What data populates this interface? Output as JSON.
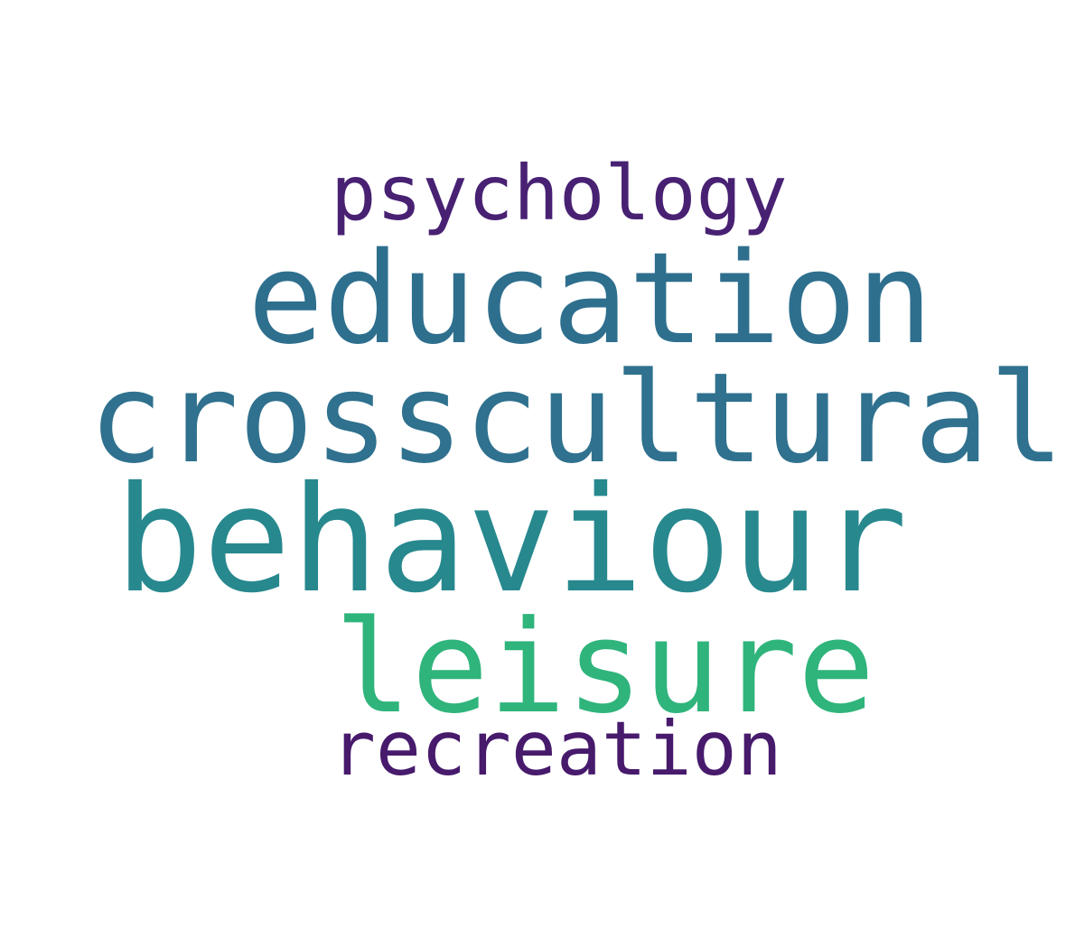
{
  "words": [
    {
      "text": "psychology",
      "color": "#482173"
    },
    {
      "text": "education",
      "color": "#2e6f8e"
    },
    {
      "text": "crosscultural",
      "color": "#2f718e"
    },
    {
      "text": "behaviour",
      "color": "#27888e"
    },
    {
      "text": "leisure",
      "color": "#2fb47c"
    },
    {
      "text": "recreation",
      "color": "#471a6c"
    }
  ]
}
